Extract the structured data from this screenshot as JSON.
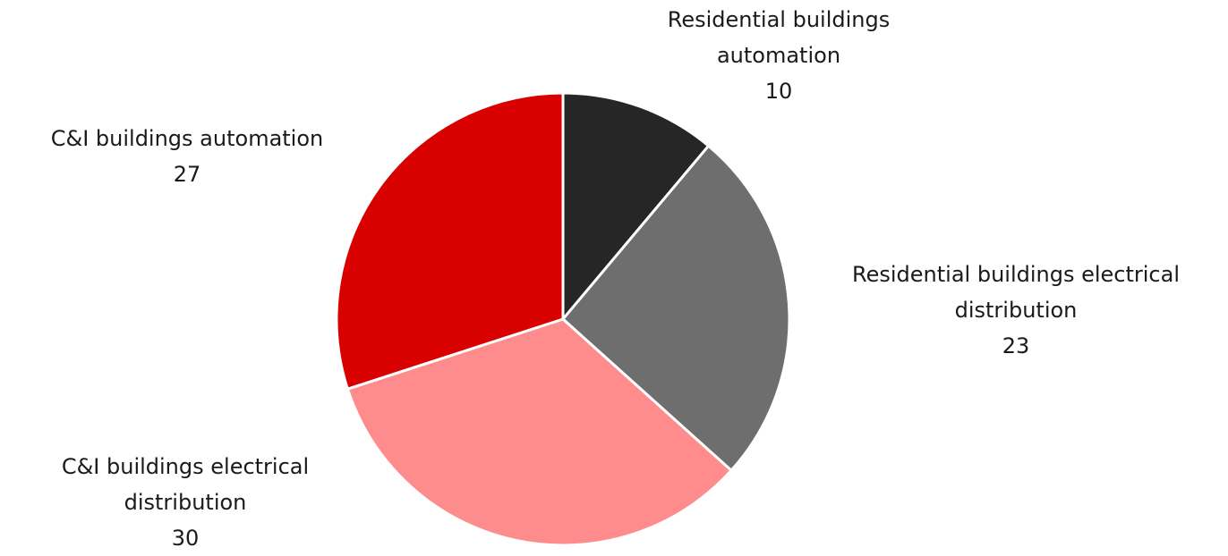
{
  "chart_data": {
    "type": "pie",
    "categories": [
      "Residential buildings automation",
      "Residential buildings electrical distribution",
      "C&I buildings electrical distribution",
      "C&I buildings automation"
    ],
    "values": [
      10,
      23,
      30,
      27
    ],
    "colors": [
      "#262626",
      "#6e6e6e",
      "#ff8c8c",
      "#d90000"
    ]
  }
}
